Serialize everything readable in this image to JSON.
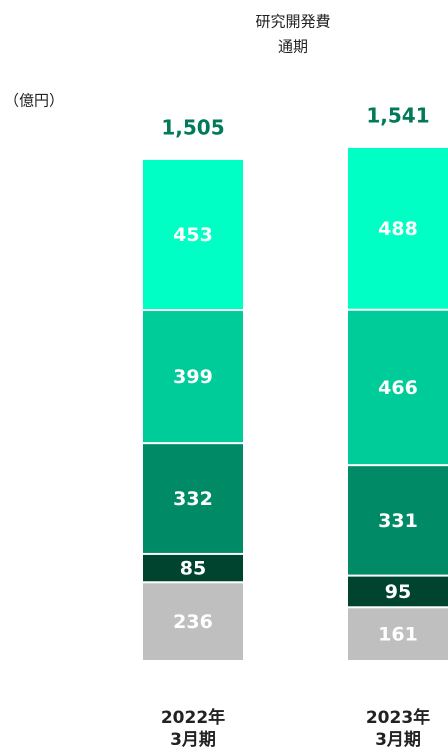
{
  "chart_data": {
    "type": "stacked-bar",
    "title": "研究開発費",
    "subtitle": "通期",
    "unit_label": "（億円）",
    "categories": [
      [
        "2022年",
        "3月期"
      ],
      [
        "2023年",
        "3月期"
      ]
    ],
    "series": [
      {
        "color": "#bfbfbf",
        "values": [
          236,
          161
        ]
      },
      {
        "color": "#00432f",
        "values": [
          85,
          95
        ]
      },
      {
        "color": "#008a66",
        "values": [
          332,
          331
        ]
      },
      {
        "color": "#00cc99",
        "values": [
          399,
          466
        ]
      },
      {
        "color": "#00ffc4",
        "values": [
          453,
          488
        ]
      }
    ],
    "totals": [
      1505,
      1541
    ],
    "total_labels": [
      "1,505",
      "1,541"
    ]
  }
}
